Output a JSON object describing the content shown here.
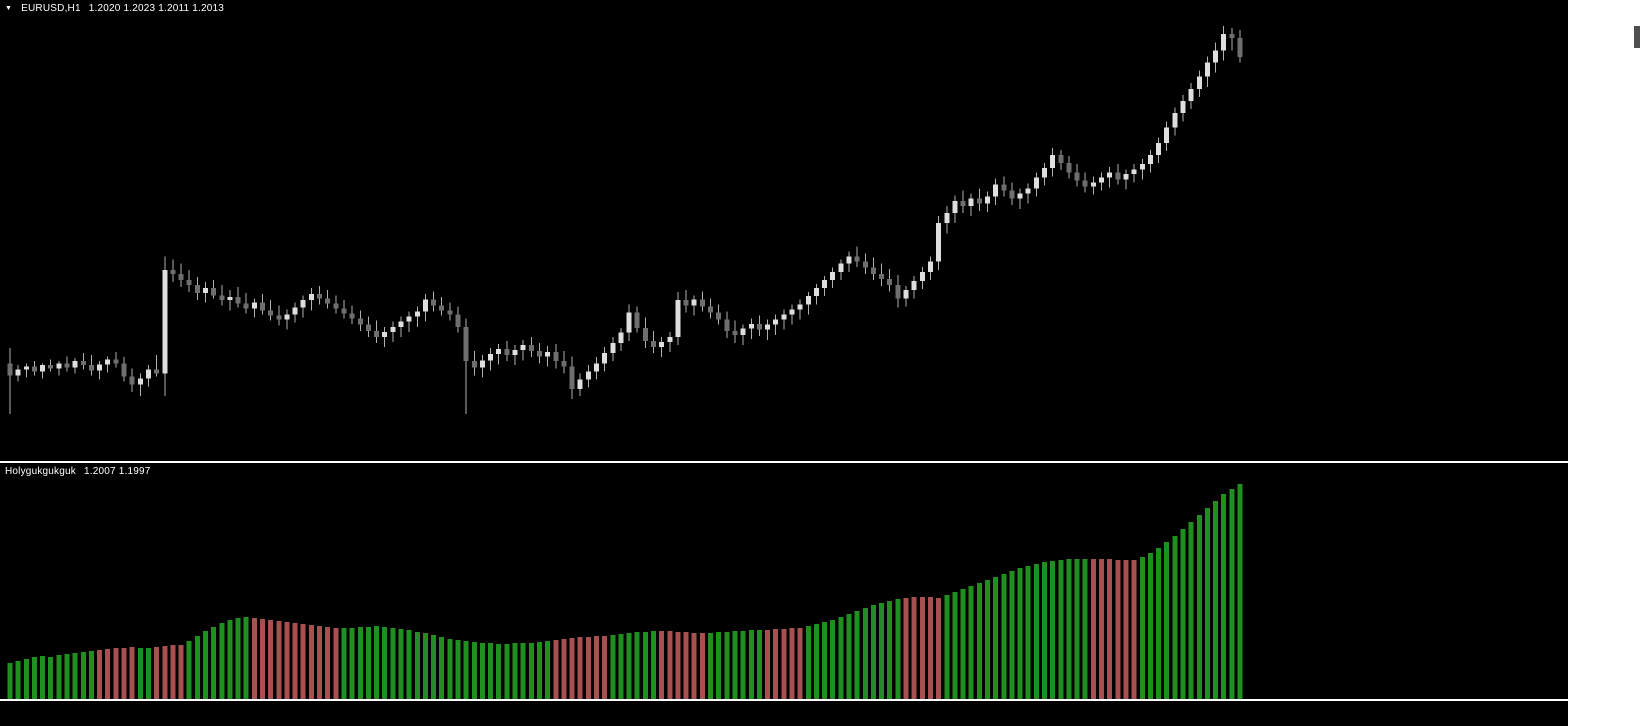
{
  "chart": {
    "symbol_label": "EURUSD,H1",
    "ohlc_label": "1.2020 1.2023 1.2011 1.2013"
  },
  "indicator": {
    "label": "Holygukgukguk",
    "values_label": "1.2007 1.1997"
  },
  "colors": {
    "background": "#000000",
    "separator": "#ffffff",
    "text": "#ffffff",
    "bull": "#dedede",
    "bear": "#6e6e6e",
    "wick": "#b0b0b0",
    "hist_up": "#1f8f1f",
    "hist_down": "#a85050"
  },
  "chart_data": {
    "type": "candlestick",
    "grid": false,
    "x_axis_visible": false,
    "y_axis_visible": false,
    "panes": [
      {
        "type": "candlestick",
        "symbol": "EURUSD",
        "timeframe": "H1",
        "current_ohlc": [
          1.202,
          1.2023,
          1.2011,
          1.2013
        ],
        "candles": [
          [
            1.19,
            1.19056,
            1.18813,
            1.18955
          ],
          [
            1.18955,
            1.18993,
            1.18933,
            1.18978
          ],
          [
            1.18978,
            1.19,
            1.18948,
            1.18989
          ],
          [
            1.18989,
            1.19008,
            1.18955,
            1.1897
          ],
          [
            1.1897,
            1.19,
            1.18944,
            1.18993
          ],
          [
            1.18993,
            1.19015,
            1.1897,
            1.18981
          ],
          [
            1.18981,
            1.19008,
            1.18955,
            1.19
          ],
          [
            1.19,
            1.19026,
            1.1897,
            1.18985
          ],
          [
            1.18985,
            1.19019,
            1.18963,
            1.19008
          ],
          [
            1.19008,
            1.19038,
            1.18978,
            1.18993
          ],
          [
            1.18993,
            1.1903,
            1.18955,
            1.18974
          ],
          [
            1.18974,
            1.19008,
            1.1894,
            1.18996
          ],
          [
            1.18996,
            1.19026,
            1.18966,
            1.19015
          ],
          [
            1.19015,
            1.19041,
            1.18985,
            1.19
          ],
          [
            1.19,
            1.19023,
            1.18933,
            1.18951
          ],
          [
            1.18951,
            1.18981,
            1.18895,
            1.18921
          ],
          [
            1.18921,
            1.18963,
            1.1888,
            1.18944
          ],
          [
            1.18944,
            1.18993,
            1.18914,
            1.18978
          ],
          [
            1.18978,
            1.1903,
            1.18951,
            1.18963
          ],
          [
            1.18963,
            1.19394,
            1.1888,
            1.19345
          ],
          [
            1.19345,
            1.19383,
            1.193,
            1.1933
          ],
          [
            1.1933,
            1.19368,
            1.19281,
            1.19308
          ],
          [
            1.19308,
            1.19345,
            1.19263,
            1.19289
          ],
          [
            1.19289,
            1.19319,
            1.19233,
            1.19259
          ],
          [
            1.19259,
            1.193,
            1.19225,
            1.19278
          ],
          [
            1.19278,
            1.19308,
            1.1924,
            1.19251
          ],
          [
            1.19251,
            1.19289,
            1.19214,
            1.19233
          ],
          [
            1.19233,
            1.1927,
            1.19195,
            1.19244
          ],
          [
            1.19244,
            1.19281,
            1.19206,
            1.19221
          ],
          [
            1.19221,
            1.19259,
            1.19184,
            1.19203
          ],
          [
            1.19203,
            1.1924,
            1.19169,
            1.19225
          ],
          [
            1.19225,
            1.19255,
            1.1918,
            1.19195
          ],
          [
            1.19195,
            1.19233,
            1.19158,
            1.19176
          ],
          [
            1.19176,
            1.19214,
            1.19139,
            1.19161
          ],
          [
            1.19161,
            1.19199,
            1.19124,
            1.1918
          ],
          [
            1.1918,
            1.19225,
            1.1915,
            1.19206
          ],
          [
            1.19206,
            1.19251,
            1.19169,
            1.19233
          ],
          [
            1.19233,
            1.19278,
            1.19195,
            1.19255
          ],
          [
            1.19255,
            1.19285,
            1.19218,
            1.1924
          ],
          [
            1.1924,
            1.1927,
            1.19203,
            1.19221
          ],
          [
            1.19221,
            1.19251,
            1.19184,
            1.19203
          ],
          [
            1.19203,
            1.19233,
            1.19165,
            1.19184
          ],
          [
            1.19184,
            1.19214,
            1.19146,
            1.19165
          ],
          [
            1.19165,
            1.19195,
            1.1912,
            1.19143
          ],
          [
            1.19143,
            1.19173,
            1.19098,
            1.1912
          ],
          [
            1.1912,
            1.19158,
            1.19075,
            1.19098
          ],
          [
            1.19098,
            1.19135,
            1.1906,
            1.19116
          ],
          [
            1.19116,
            1.19154,
            1.19079,
            1.19135
          ],
          [
            1.19135,
            1.19173,
            1.19098,
            1.19154
          ],
          [
            1.19154,
            1.19191,
            1.19116,
            1.19173
          ],
          [
            1.19173,
            1.1921,
            1.19135,
            1.19191
          ],
          [
            1.19191,
            1.19255,
            1.19154,
            1.19236
          ],
          [
            1.19236,
            1.19266,
            1.19191,
            1.19214
          ],
          [
            1.19214,
            1.19244,
            1.19176,
            1.19195
          ],
          [
            1.19195,
            1.19225,
            1.19158,
            1.1918
          ],
          [
            1.1918,
            1.1921,
            1.19113,
            1.19135
          ],
          [
            1.19135,
            1.19165,
            1.18813,
            1.19008
          ],
          [
            1.19008,
            1.19045,
            1.18955,
            1.18985
          ],
          [
            1.18985,
            1.1903,
            1.18948,
            1.19011
          ],
          [
            1.19011,
            1.19056,
            1.18974,
            1.19034
          ],
          [
            1.19034,
            1.19071,
            1.18996,
            1.19053
          ],
          [
            1.19053,
            1.19083,
            1.19008,
            1.1903
          ],
          [
            1.1903,
            1.19068,
            1.18993,
            1.19049
          ],
          [
            1.19049,
            1.19086,
            1.19011,
            1.19068
          ],
          [
            1.19068,
            1.19098,
            1.19023,
            1.19045
          ],
          [
            1.19045,
            1.19075,
            1.19,
            1.19026
          ],
          [
            1.19026,
            1.19064,
            1.18989,
            1.19041
          ],
          [
            1.19041,
            1.19071,
            1.18981,
            1.19008
          ],
          [
            1.19008,
            1.19045,
            1.18963,
            1.18989
          ],
          [
            1.18989,
            1.19026,
            1.18869,
            1.18906
          ],
          [
            1.18906,
            1.18963,
            1.1888,
            1.1894
          ],
          [
            1.1894,
            1.18993,
            1.1891,
            1.1897
          ],
          [
            1.1897,
            1.19023,
            1.1894,
            1.19
          ],
          [
            1.19,
            1.1906,
            1.1897,
            1.19038
          ],
          [
            1.19038,
            1.19098,
            1.19008,
            1.19075
          ],
          [
            1.19075,
            1.19131,
            1.19045,
            1.19113
          ],
          [
            1.19113,
            1.19218,
            1.19083,
            1.19188
          ],
          [
            1.19188,
            1.1921,
            1.19113,
            1.19131
          ],
          [
            1.19131,
            1.19169,
            1.19056,
            1.19083
          ],
          [
            1.19083,
            1.1912,
            1.19038,
            1.1906
          ],
          [
            1.1906,
            1.19098,
            1.19023,
            1.19079
          ],
          [
            1.19079,
            1.19116,
            1.19041,
            1.19098
          ],
          [
            1.19098,
            1.19263,
            1.19068,
            1.19233
          ],
          [
            1.19233,
            1.1927,
            1.19188,
            1.19214
          ],
          [
            1.19214,
            1.19251,
            1.19176,
            1.19236
          ],
          [
            1.19236,
            1.19266,
            1.19191,
            1.1921
          ],
          [
            1.1921,
            1.1924,
            1.19165,
            1.19188
          ],
          [
            1.19188,
            1.19218,
            1.19143,
            1.19161
          ],
          [
            1.19161,
            1.19191,
            1.19094,
            1.1912
          ],
          [
            1.1912,
            1.19158,
            1.19075,
            1.19105
          ],
          [
            1.19105,
            1.19143,
            1.19068,
            1.19128
          ],
          [
            1.19128,
            1.19165,
            1.1909,
            1.19146
          ],
          [
            1.19146,
            1.19176,
            1.19101,
            1.19124
          ],
          [
            1.19124,
            1.19161,
            1.19086,
            1.19143
          ],
          [
            1.19143,
            1.1918,
            1.19105,
            1.19161
          ],
          [
            1.19161,
            1.19199,
            1.19124,
            1.1918
          ],
          [
            1.1918,
            1.19218,
            1.19143,
            1.19199
          ],
          [
            1.19199,
            1.19236,
            1.19161,
            1.19218
          ],
          [
            1.19218,
            1.19263,
            1.1918,
            1.19248
          ],
          [
            1.19248,
            1.19293,
            1.19218,
            1.19278
          ],
          [
            1.19278,
            1.19323,
            1.19248,
            1.19308
          ],
          [
            1.19308,
            1.19353,
            1.19278,
            1.19338
          ],
          [
            1.19338,
            1.19383,
            1.19308,
            1.19368
          ],
          [
            1.19368,
            1.19413,
            1.19338,
            1.19394
          ],
          [
            1.19394,
            1.19431,
            1.19356,
            1.19375
          ],
          [
            1.19375,
            1.19405,
            1.1933,
            1.19353
          ],
          [
            1.19353,
            1.1939,
            1.19308,
            1.1933
          ],
          [
            1.1933,
            1.19368,
            1.19285,
            1.19311
          ],
          [
            1.19311,
            1.19349,
            1.19266,
            1.19289
          ],
          [
            1.19289,
            1.19326,
            1.19206,
            1.1924
          ],
          [
            1.1924,
            1.19285,
            1.1921,
            1.1927
          ],
          [
            1.1927,
            1.19323,
            1.1924,
            1.19304
          ],
          [
            1.19304,
            1.19356,
            1.19274,
            1.19338
          ],
          [
            1.19338,
            1.19394,
            1.19308,
            1.19375
          ],
          [
            1.19375,
            1.19544,
            1.19345,
            1.19518
          ],
          [
            1.19518,
            1.19581,
            1.1948,
            1.19555
          ],
          [
            1.19555,
            1.19619,
            1.19518,
            1.196
          ],
          [
            1.196,
            1.19638,
            1.19555,
            1.19581
          ],
          [
            1.19581,
            1.19626,
            1.19544,
            1.19608
          ],
          [
            1.19608,
            1.19645,
            1.19563,
            1.19589
          ],
          [
            1.19589,
            1.19634,
            1.19559,
            1.19615
          ],
          [
            1.19615,
            1.19683,
            1.19585,
            1.1966
          ],
          [
            1.1966,
            1.1969,
            1.19615,
            1.19638
          ],
          [
            1.19638,
            1.19668,
            1.19585,
            1.19608
          ],
          [
            1.19608,
            1.19645,
            1.1957,
            1.19626
          ],
          [
            1.19626,
            1.19664,
            1.19589,
            1.19645
          ],
          [
            1.19645,
            1.19705,
            1.19615,
            1.19686
          ],
          [
            1.19686,
            1.19739,
            1.19656,
            1.1972
          ],
          [
            1.1972,
            1.19795,
            1.1969,
            1.19769
          ],
          [
            1.19769,
            1.19788,
            1.19713,
            1.19739
          ],
          [
            1.19739,
            1.19765,
            1.19683,
            1.19705
          ],
          [
            1.19705,
            1.19735,
            1.19653,
            1.19675
          ],
          [
            1.19675,
            1.19705,
            1.1963,
            1.19653
          ],
          [
            1.19653,
            1.1969,
            1.19623,
            1.19668
          ],
          [
            1.19668,
            1.19705,
            1.19638,
            1.19686
          ],
          [
            1.19686,
            1.19724,
            1.19649,
            1.19705
          ],
          [
            1.19705,
            1.19735,
            1.1966,
            1.19679
          ],
          [
            1.19679,
            1.19716,
            1.19641,
            1.19698
          ],
          [
            1.19698,
            1.19735,
            1.19668,
            1.19716
          ],
          [
            1.19716,
            1.19754,
            1.19679,
            1.19735
          ],
          [
            1.19735,
            1.19788,
            1.19705,
            1.19769
          ],
          [
            1.19769,
            1.19833,
            1.19739,
            1.19814
          ],
          [
            1.19814,
            1.19893,
            1.19784,
            1.1987
          ],
          [
            1.1987,
            1.19945,
            1.1984,
            1.19923
          ],
          [
            1.19923,
            1.1999,
            1.19893,
            1.19968
          ],
          [
            1.19968,
            1.20035,
            1.19938,
            1.20013
          ],
          [
            1.20013,
            1.2008,
            1.19983,
            1.20058
          ],
          [
            1.20058,
            1.20133,
            1.2002,
            1.2011
          ],
          [
            1.2011,
            1.20185,
            1.20073,
            1.20155
          ],
          [
            1.20155,
            1.20245,
            1.20118,
            1.20215
          ],
          [
            1.20215,
            1.20238,
            1.20155,
            1.202
          ],
          [
            1.202,
            1.2023,
            1.2011,
            1.2013
          ]
        ]
      },
      {
        "type": "bar",
        "name": "Holygukgukguk",
        "current_values": [
          1.2007,
          1.1997
        ],
        "height_unit": "px-estimate-from-pane-bottom",
        "heights": [
          36,
          38,
          40,
          42,
          43,
          42,
          44,
          45,
          46,
          47,
          48,
          49,
          50,
          51,
          51,
          52,
          51,
          51,
          52,
          53,
          54,
          54,
          58,
          63,
          68,
          72,
          76,
          79,
          81,
          82,
          81,
          80,
          79,
          78,
          77,
          76,
          75,
          74,
          73,
          72,
          71,
          71,
          71,
          72,
          72,
          73,
          72,
          71,
          70,
          69,
          67,
          66,
          64,
          62,
          60,
          59,
          58,
          57,
          56,
          56,
          55,
          55,
          56,
          56,
          56,
          57,
          58,
          59,
          60,
          61,
          62,
          62,
          63,
          63,
          64,
          65,
          66,
          67,
          67,
          68,
          68,
          68,
          67,
          67,
          66,
          66,
          66,
          67,
          67,
          68,
          68,
          69,
          69,
          69,
          70,
          70,
          71,
          71,
          73,
          75,
          77,
          79,
          82,
          85,
          88,
          91,
          94,
          96,
          98,
          100,
          101,
          102,
          102,
          102,
          101,
          104,
          107,
          110,
          113,
          116,
          119,
          122,
          125,
          128,
          131,
          133,
          135,
          137,
          138,
          139,
          140,
          140,
          140,
          140,
          140,
          140,
          139,
          139,
          139,
          142,
          146,
          151,
          157,
          163,
          170,
          177,
          184,
          191,
          198,
          205,
          210,
          215
        ],
        "colors": "gggggggggggrrrrrggrrrrggggggggrrrrrrrrrrrggggggggggggggggggggggggggrrrrrrrggggggrrrrrrgggggggrrrrrggggggggggggrrrrrggggggggggggggggggrrrrrrggggggggggggg"
      }
    ]
  }
}
